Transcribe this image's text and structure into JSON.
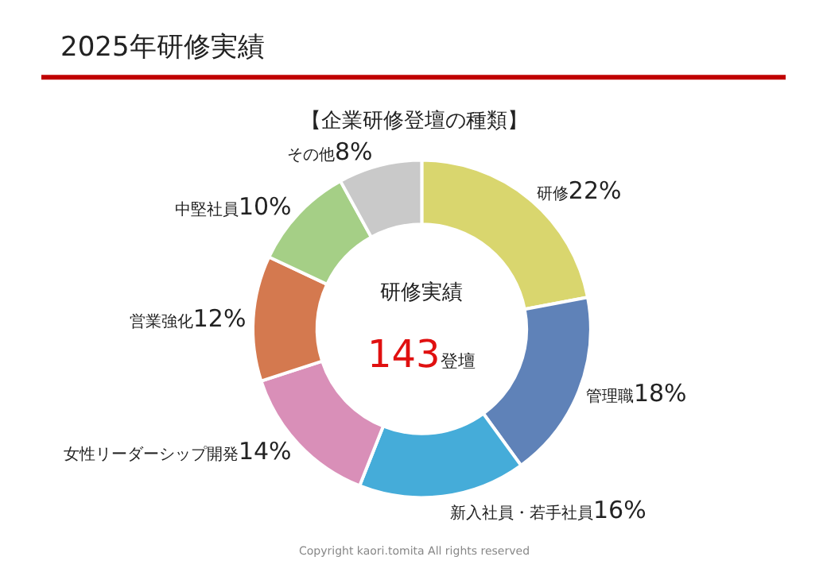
{
  "chart_data": {
    "type": "donut",
    "title": "2025年研修実績",
    "subtitle": "【企業研修登壇の種類】",
    "categories": [
      "研修",
      "管理職",
      "新入社員・若手社員",
      "女性リーダーシップ開発",
      "営業強化",
      "中堅社員",
      "その他"
    ],
    "values": [
      22,
      18,
      16,
      14,
      12,
      10,
      8
    ],
    "value_labels": [
      "22%",
      "18%",
      "16%",
      "14%",
      "12%",
      "10%",
      "8%"
    ],
    "colors": [
      "#d9d66e",
      "#5f82b8",
      "#45acd9",
      "#d98fb8",
      "#d4794f",
      "#a5cf86",
      "#c9c9c9"
    ],
    "annotations": [
      "研修実績",
      "143登壇",
      "Copyright kaori.tomita All rights reserved"
    ],
    "legend": false
  }
}
